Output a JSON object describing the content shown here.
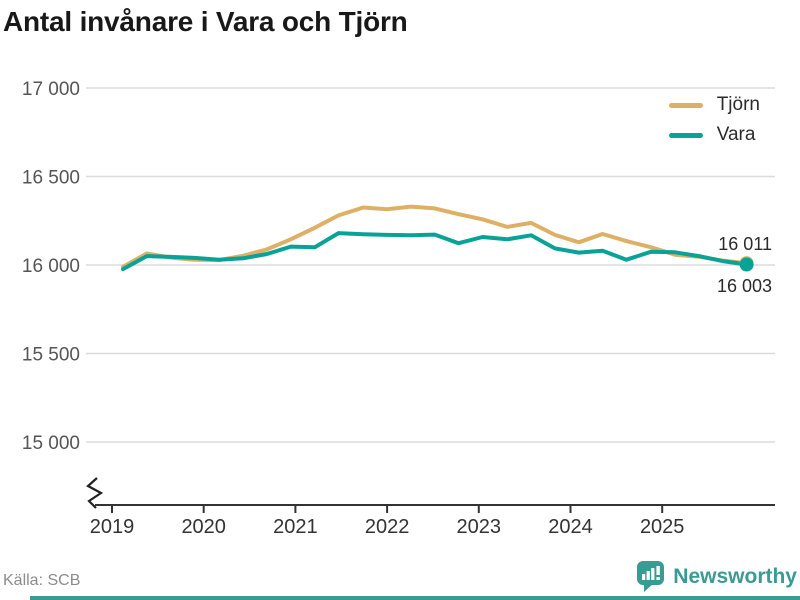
{
  "title": "Antal invånare i Vara och Tjörn",
  "source": "Källa: SCB",
  "branding": {
    "name": "Newsworthy",
    "color": "#3a9b94"
  },
  "chart_data": {
    "type": "line",
    "title": "Antal invånare i Vara och Tjörn",
    "x": [
      2019.12,
      2019.38,
      2019.64,
      2019.9,
      2020.17,
      2020.43,
      2020.69,
      2020.95,
      2021.21,
      2021.47,
      2021.74,
      2022.0,
      2022.26,
      2022.52,
      2022.78,
      2023.04,
      2023.31,
      2023.57,
      2023.83,
      2024.09,
      2024.35,
      2024.61,
      2024.88,
      2025.14,
      2025.4,
      2025.66,
      2025.92
    ],
    "series": [
      {
        "name": "Tjörn",
        "color": "#ddb066",
        "values": [
          15990,
          16065,
          16042,
          16030,
          16028,
          16052,
          16088,
          16145,
          16210,
          16280,
          16325,
          16315,
          16330,
          16320,
          16287,
          16258,
          16215,
          16238,
          16170,
          16128,
          16175,
          16135,
          16100,
          16058,
          16047,
          16025,
          16011
        ]
      },
      {
        "name": "Vara",
        "color": "#09a296",
        "values": [
          15977,
          16050,
          16046,
          16040,
          16030,
          16038,
          16062,
          16104,
          16100,
          16180,
          16174,
          16170,
          16168,
          16172,
          16123,
          16158,
          16145,
          16168,
          16094,
          16070,
          16080,
          16030,
          16075,
          16072,
          16050,
          16022,
          16003
        ]
      }
    ],
    "end_labels": [
      "16 011",
      "16 003"
    ],
    "y_ticks": [
      {
        "value": 17000,
        "label": "17 000"
      },
      {
        "value": 16500,
        "label": "16 500"
      },
      {
        "value": 16000,
        "label": "16 000"
      },
      {
        "value": 15500,
        "label": "15 500"
      },
      {
        "value": 15000,
        "label": "15 000"
      }
    ],
    "x_ticks": [
      {
        "value": 2019,
        "label": "2019"
      },
      {
        "value": 2020,
        "label": "2020"
      },
      {
        "value": 2021,
        "label": "2021"
      },
      {
        "value": 2022,
        "label": "2022"
      },
      {
        "value": 2023,
        "label": "2023"
      },
      {
        "value": 2024,
        "label": "2024"
      },
      {
        "value": 2025,
        "label": "2025"
      }
    ],
    "ylim": [
      15000,
      17000
    ],
    "axis_break": true,
    "grid": "horizontal",
    "legend_position": "top-right"
  }
}
